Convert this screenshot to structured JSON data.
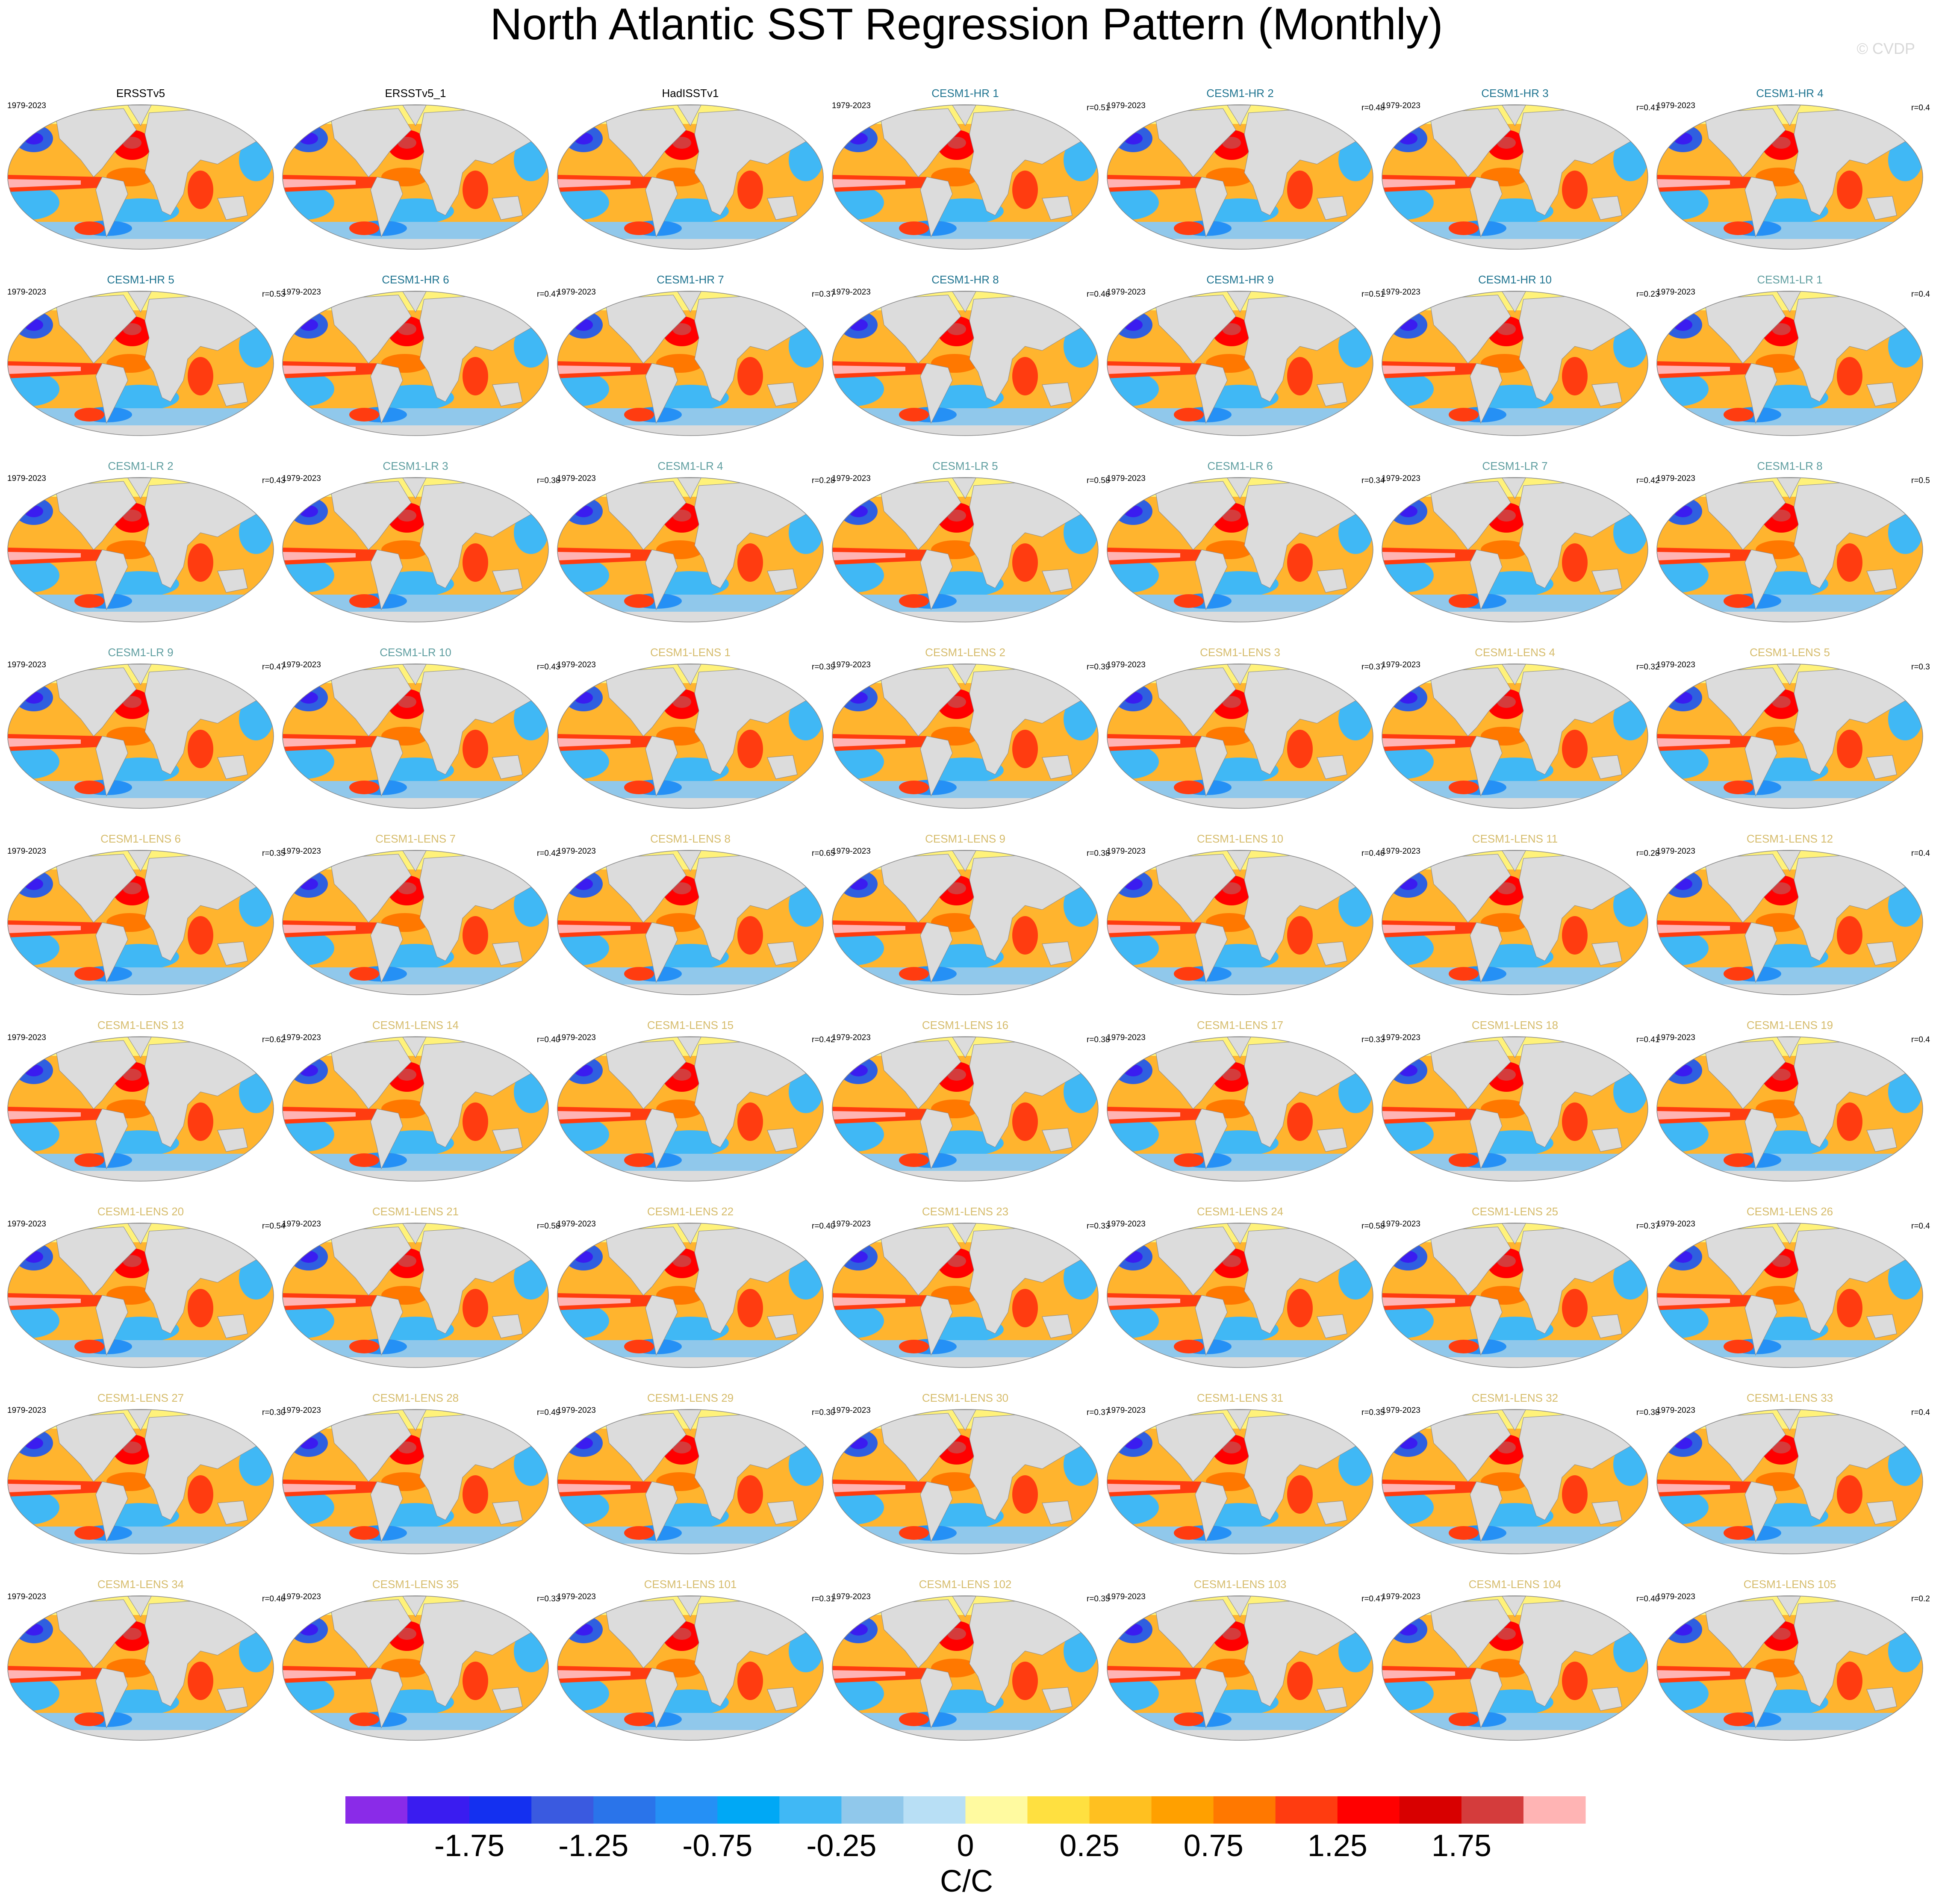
{
  "title": "North Atlantic SST Regression Pattern (Monthly)",
  "watermark": "© CVDP",
  "panels": [
    {
      "title": "ERSSTv5",
      "years": "1979-2023",
      "color": "#000000"
    },
    {
      "title": "ERSSTv5_1",
      "color": "#000000"
    },
    {
      "title": "HadISSTv1",
      "color": "#000000"
    },
    {
      "title": "CESM1-HR 1",
      "years": "1979-2023",
      "r": "r=0.51",
      "color": "#1f7490"
    },
    {
      "title": "CESM1-HR 2",
      "years": "1979-2023",
      "r": "r=0.48",
      "color": "#1f7490"
    },
    {
      "title": "CESM1-HR 3",
      "years": "1979-2023",
      "r": "r=0.41",
      "color": "#1f7490"
    },
    {
      "title": "CESM1-HR 4",
      "years": "1979-2023",
      "r": "r=0.4",
      "color": "#1f7490"
    },
    {
      "title": "CESM1-HR 5",
      "years": "1979-2023",
      "r": "r=0.53",
      "color": "#1f7490"
    },
    {
      "title": "CESM1-HR 6",
      "years": "1979-2023",
      "r": "r=0.47",
      "color": "#1f7490"
    },
    {
      "title": "CESM1-HR 7",
      "years": "1979-2023",
      "r": "r=0.37",
      "color": "#1f7490"
    },
    {
      "title": "CESM1-HR 8",
      "years": "1979-2023",
      "r": "r=0.46",
      "color": "#1f7490"
    },
    {
      "title": "CESM1-HR 9",
      "years": "1979-2023",
      "r": "r=0.51",
      "color": "#1f7490"
    },
    {
      "title": "CESM1-HR 10",
      "years": "1979-2023",
      "r": "r=0.23",
      "color": "#1f7490"
    },
    {
      "title": "CESM1-LR 1",
      "years": "1979-2023",
      "r": "r=0.4",
      "color": "#5f9ea0"
    },
    {
      "title": "CESM1-LR 2",
      "years": "1979-2023",
      "r": "r=0.43",
      "color": "#5f9ea0"
    },
    {
      "title": "CESM1-LR 3",
      "years": "1979-2023",
      "r": "r=0.38",
      "color": "#5f9ea0"
    },
    {
      "title": "CESM1-LR 4",
      "years": "1979-2023",
      "r": "r=0.28",
      "color": "#5f9ea0"
    },
    {
      "title": "CESM1-LR 5",
      "years": "1979-2023",
      "r": "r=0.58",
      "color": "#5f9ea0"
    },
    {
      "title": "CESM1-LR 6",
      "years": "1979-2023",
      "r": "r=0.34",
      "color": "#5f9ea0"
    },
    {
      "title": "CESM1-LR 7",
      "years": "1979-2023",
      "r": "r=0.42",
      "color": "#5f9ea0"
    },
    {
      "title": "CESM1-LR 8",
      "years": "1979-2023",
      "r": "r=0.5",
      "color": "#5f9ea0"
    },
    {
      "title": "CESM1-LR 9",
      "years": "1979-2023",
      "r": "r=0.47",
      "color": "#5f9ea0"
    },
    {
      "title": "CESM1-LR 10",
      "years": "1979-2023",
      "r": "r=0.43",
      "color": "#5f9ea0"
    },
    {
      "title": "CESM1-LENS 1",
      "years": "1979-2023",
      "r": "r=0.39",
      "color": "#d6bc6c"
    },
    {
      "title": "CESM1-LENS 2",
      "years": "1979-2023",
      "r": "r=0.39",
      "color": "#d6bc6c"
    },
    {
      "title": "CESM1-LENS 3",
      "years": "1979-2023",
      "r": "r=0.37",
      "color": "#d6bc6c"
    },
    {
      "title": "CESM1-LENS 4",
      "years": "1979-2023",
      "r": "r=0.32",
      "color": "#d6bc6c"
    },
    {
      "title": "CESM1-LENS 5",
      "years": "1979-2023",
      "r": "r=0.3",
      "color": "#d6bc6c"
    },
    {
      "title": "CESM1-LENS 6",
      "years": "1979-2023",
      "r": "r=0.35",
      "color": "#d6bc6c"
    },
    {
      "title": "CESM1-LENS 7",
      "years": "1979-2023",
      "r": "r=0.42",
      "color": "#d6bc6c"
    },
    {
      "title": "CESM1-LENS 8",
      "years": "1979-2023",
      "r": "r=0.65",
      "color": "#d6bc6c"
    },
    {
      "title": "CESM1-LENS 9",
      "years": "1979-2023",
      "r": "r=0.38",
      "color": "#d6bc6c"
    },
    {
      "title": "CESM1-LENS 10",
      "years": "1979-2023",
      "r": "r=0.46",
      "color": "#d6bc6c"
    },
    {
      "title": "CESM1-LENS 11",
      "years": "1979-2023",
      "r": "r=0.28",
      "color": "#d6bc6c"
    },
    {
      "title": "CESM1-LENS 12",
      "years": "1979-2023",
      "r": "r=0.4",
      "color": "#d6bc6c"
    },
    {
      "title": "CESM1-LENS 13",
      "years": "1979-2023",
      "r": "r=0.62",
      "color": "#d6bc6c"
    },
    {
      "title": "CESM1-LENS 14",
      "years": "1979-2023",
      "r": "r=0.40",
      "color": "#d6bc6c"
    },
    {
      "title": "CESM1-LENS 15",
      "years": "1979-2023",
      "r": "r=0.42",
      "color": "#d6bc6c"
    },
    {
      "title": "CESM1-LENS 16",
      "years": "1979-2023",
      "r": "r=0.38",
      "color": "#d6bc6c"
    },
    {
      "title": "CESM1-LENS 17",
      "years": "1979-2023",
      "r": "r=0.33",
      "color": "#d6bc6c"
    },
    {
      "title": "CESM1-LENS 18",
      "years": "1979-2023",
      "r": "r=0.41",
      "color": "#d6bc6c"
    },
    {
      "title": "CESM1-LENS 19",
      "years": "1979-2023",
      "r": "r=0.4",
      "color": "#d6bc6c"
    },
    {
      "title": "CESM1-LENS 20",
      "years": "1979-2023",
      "r": "r=0.54",
      "color": "#d6bc6c"
    },
    {
      "title": "CESM1-LENS 21",
      "years": "1979-2023",
      "r": "r=0.58",
      "color": "#d6bc6c"
    },
    {
      "title": "CESM1-LENS 22",
      "years": "1979-2023",
      "r": "r=0.40",
      "color": "#d6bc6c"
    },
    {
      "title": "CESM1-LENS 23",
      "years": "1979-2023",
      "r": "r=0.33",
      "color": "#d6bc6c"
    },
    {
      "title": "CESM1-LENS 24",
      "years": "1979-2023",
      "r": "r=0.58",
      "color": "#d6bc6c"
    },
    {
      "title": "CESM1-LENS 25",
      "years": "1979-2023",
      "r": "r=0.37",
      "color": "#d6bc6c"
    },
    {
      "title": "CESM1-LENS 26",
      "years": "1979-2023",
      "r": "r=0.4",
      "color": "#d6bc6c"
    },
    {
      "title": "CESM1-LENS 27",
      "years": "1979-2023",
      "r": "r=0.30",
      "color": "#d6bc6c"
    },
    {
      "title": "CESM1-LENS 28",
      "years": "1979-2023",
      "r": "r=0.49",
      "color": "#d6bc6c"
    },
    {
      "title": "CESM1-LENS 29",
      "years": "1979-2023",
      "r": "r=0.30",
      "color": "#d6bc6c"
    },
    {
      "title": "CESM1-LENS 30",
      "years": "1979-2023",
      "r": "r=0.37",
      "color": "#d6bc6c"
    },
    {
      "title": "CESM1-LENS 31",
      "years": "1979-2023",
      "r": "r=0.35",
      "color": "#d6bc6c"
    },
    {
      "title": "CESM1-LENS 32",
      "years": "1979-2023",
      "r": "r=0.38",
      "color": "#d6bc6c"
    },
    {
      "title": "CESM1-LENS 33",
      "years": "1979-2023",
      "r": "r=0.4",
      "color": "#d6bc6c"
    },
    {
      "title": "CESM1-LENS 34",
      "years": "1979-2023",
      "r": "r=0.46",
      "color": "#d6bc6c"
    },
    {
      "title": "CESM1-LENS 35",
      "years": "1979-2023",
      "r": "r=0.33",
      "color": "#d6bc6c"
    },
    {
      "title": "CESM1-LENS 101",
      "years": "1979-2023",
      "r": "r=0.31",
      "color": "#d6bc6c"
    },
    {
      "title": "CESM1-LENS 102",
      "years": "1979-2023",
      "r": "r=0.35",
      "color": "#d6bc6c"
    },
    {
      "title": "CESM1-LENS 103",
      "years": "1979-2023",
      "r": "r=0.47",
      "color": "#d6bc6c"
    },
    {
      "title": "CESM1-LENS 104",
      "years": "1979-2023",
      "r": "r=0.40",
      "color": "#d6bc6c"
    },
    {
      "title": "CESM1-LENS 105",
      "years": "1979-2023",
      "r": "r=0.2",
      "color": "#d6bc6c"
    }
  ],
  "colorbar": {
    "levels": [
      -2,
      -1.75,
      -1.5,
      -1.25,
      -1,
      -0.75,
      -0.5,
      -0.25,
      -0.1,
      0,
      0.1,
      0.25,
      0.5,
      0.75,
      1,
      1.25,
      1.5,
      1.75,
      2
    ],
    "ticks": [
      -1.75,
      -1.25,
      -0.75,
      -0.25,
      0,
      0.25,
      0.75,
      1.25,
      1.75
    ],
    "colors": [
      "#8a2be8",
      "#3a1cf0",
      "#1430f0",
      "#3a5ae0",
      "#2a74ea",
      "#2590f5",
      "#00a8f5",
      "#40b8f5",
      "#90c8eb",
      "#b8dff5",
      "#fffaa0",
      "#ffe040",
      "#ffc020",
      "#ffa000",
      "#ff7800",
      "#ff3c10",
      "#ff0000",
      "#d80000",
      "#d43c3c",
      "#ffb4b4"
    ],
    "unit": "C/C"
  }
}
